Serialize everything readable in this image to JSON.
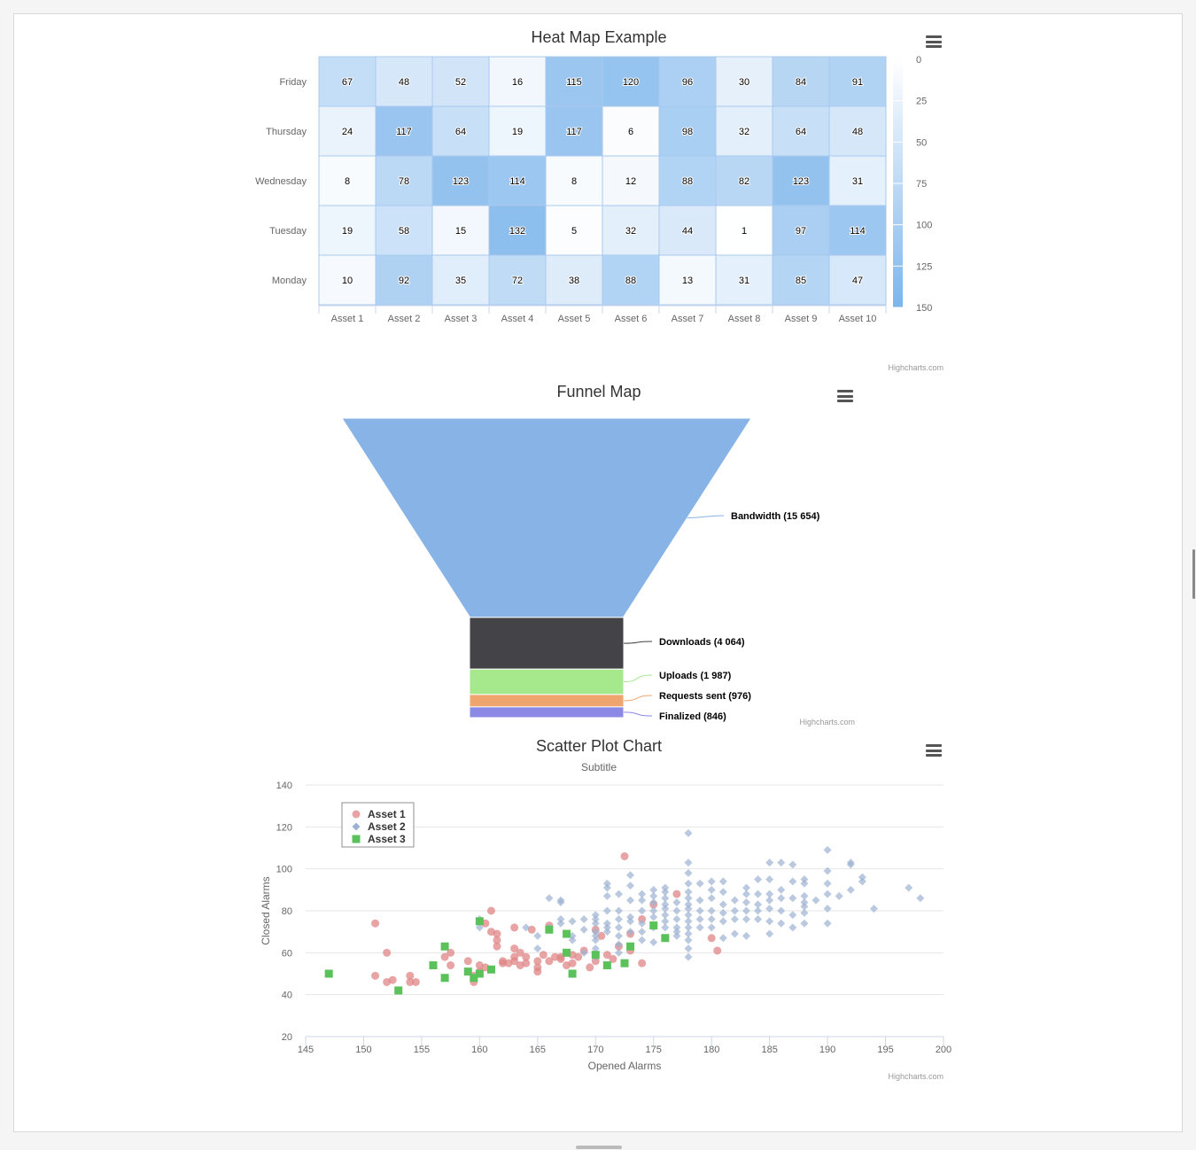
{
  "heatmap": {
    "title": "Heat Map Example",
    "credits": "Highcharts.com",
    "colors": {
      "min": "#ffffff",
      "max": "#7cb5ec",
      "border": "#a9c9ef"
    }
  },
  "funnel": {
    "title": "Funnel Map",
    "credits": "Highcharts.com"
  },
  "scatter": {
    "title": "Scatter Plot Chart",
    "subtitle": "Subtitle",
    "credits": "Highcharts.com"
  },
  "chart_data": [
    {
      "type": "heatmap",
      "title": "Heat Map Example",
      "x_categories": [
        "Asset 1",
        "Asset 2",
        "Asset 3",
        "Asset 4",
        "Asset 5",
        "Asset 6",
        "Asset 7",
        "Asset 8",
        "Asset 9",
        "Asset 10"
      ],
      "y_categories": [
        "Monday",
        "Tuesday",
        "Wednesday",
        "Thursday",
        "Friday"
      ],
      "values": [
        [
          10,
          92,
          35,
          72,
          38,
          88,
          13,
          31,
          85,
          47
        ],
        [
          19,
          58,
          15,
          132,
          5,
          32,
          44,
          1,
          97,
          114
        ],
        [
          8,
          78,
          123,
          114,
          8,
          12,
          88,
          82,
          123,
          31
        ],
        [
          24,
          117,
          64,
          19,
          117,
          6,
          98,
          32,
          64,
          48
        ],
        [
          67,
          48,
          52,
          16,
          115,
          120,
          96,
          30,
          84,
          91
        ]
      ],
      "color_axis": {
        "min": 0,
        "max": 150,
        "ticks": [
          0,
          25,
          50,
          75,
          100,
          125,
          150
        ]
      }
    },
    {
      "type": "funnel",
      "title": "Funnel Map",
      "points": [
        {
          "name": "Bandwidth",
          "value": 15654,
          "label": "Bandwidth (15 654)",
          "color": "#87b3e6"
        },
        {
          "name": "Downloads",
          "value": 4064,
          "label": "Downloads (4 064)",
          "color": "#434348"
        },
        {
          "name": "Uploads",
          "value": 1987,
          "label": "Uploads (1 987)",
          "color": "#a5e98c"
        },
        {
          "name": "Requests sent",
          "value": 976,
          "label": "Requests sent (976)",
          "color": "#f0a56e"
        },
        {
          "name": "Finalized",
          "value": 846,
          "label": "Finalized (846)",
          "color": "#8b88e6"
        }
      ]
    },
    {
      "type": "scatter",
      "title": "Scatter Plot Chart",
      "subtitle": "Subtitle",
      "xlabel": "Opened Alarms",
      "ylabel": "Closed Alarms",
      "xlim": [
        145,
        200
      ],
      "ylim": [
        20,
        140
      ],
      "x_ticks": [
        145,
        150,
        155,
        160,
        165,
        170,
        175,
        180,
        185,
        190,
        195,
        200
      ],
      "y_ticks": [
        20,
        40,
        60,
        80,
        100,
        120,
        140
      ],
      "legend": "top-left",
      "series": [
        {
          "name": "Asset 1",
          "marker": "circle",
          "color": "#e08585",
          "points": [
            [
              151,
              74
            ],
            [
              151,
              49
            ],
            [
              152,
              60
            ],
            [
              152,
              46
            ],
            [
              152.5,
              47
            ],
            [
              154,
              49
            ],
            [
              154,
              46
            ],
            [
              154.5,
              46
            ],
            [
              157,
              58
            ],
            [
              157.5,
              60
            ],
            [
              157.5,
              54
            ],
            [
              159,
              56
            ],
            [
              159.5,
              49
            ],
            [
              159.5,
              46
            ],
            [
              160,
              54
            ],
            [
              160,
              51
            ],
            [
              160.5,
              53
            ],
            [
              160.5,
              74
            ],
            [
              161,
              80
            ],
            [
              161,
              70
            ],
            [
              161.5,
              63
            ],
            [
              161.5,
              69
            ],
            [
              161.5,
              66
            ],
            [
              162,
              55
            ],
            [
              162.5,
              55
            ],
            [
              162,
              56
            ],
            [
              163,
              58
            ],
            [
              163,
              56
            ],
            [
              163,
              62
            ],
            [
              163,
              72
            ],
            [
              163.5,
              60
            ],
            [
              163.5,
              54
            ],
            [
              164,
              58
            ],
            [
              164,
              55
            ],
            [
              164.5,
              71
            ],
            [
              165,
              51
            ],
            [
              165,
              56
            ],
            [
              165,
              53
            ],
            [
              165.5,
              59
            ],
            [
              166,
              56
            ],
            [
              166,
              73
            ],
            [
              166.5,
              58
            ],
            [
              167,
              58
            ],
            [
              167,
              57
            ],
            [
              167.5,
              54
            ],
            [
              168,
              59
            ],
            [
              168,
              55
            ],
            [
              168.5,
              58
            ],
            [
              169,
              61
            ],
            [
              169.5,
              53
            ],
            [
              170,
              56
            ],
            [
              170,
              71
            ],
            [
              170.5,
              68
            ],
            [
              171,
              59
            ],
            [
              171.5,
              57
            ],
            [
              172,
              63
            ],
            [
              172.5,
              106
            ],
            [
              173,
              61
            ],
            [
              173,
              69
            ],
            [
              174,
              55
            ],
            [
              175,
              83
            ],
            [
              177,
              88
            ],
            [
              180,
              67
            ],
            [
              180.5,
              61
            ],
            [
              174,
              76
            ]
          ]
        },
        {
          "name": "Asset 2",
          "marker": "diamond",
          "color": "#9db2d2",
          "points": [
            [
              160,
              72
            ],
            [
              160,
              76
            ],
            [
              164,
              72
            ],
            [
              165,
              68
            ],
            [
              165,
              62
            ],
            [
              166,
              72
            ],
            [
              166,
              86
            ],
            [
              167,
              85
            ],
            [
              167,
              84
            ],
            [
              167,
              74
            ],
            [
              167,
              76
            ],
            [
              168,
              75
            ],
            [
              168,
              68
            ],
            [
              168,
              66
            ],
            [
              169,
              76
            ],
            [
              169,
              71
            ],
            [
              169,
              60
            ],
            [
              170,
              78
            ],
            [
              170,
              76
            ],
            [
              170,
              74
            ],
            [
              170,
              70
            ],
            [
              170,
              68
            ],
            [
              170,
              66
            ],
            [
              170,
              62
            ],
            [
              170,
              58
            ],
            [
              171,
              93
            ],
            [
              171,
              91
            ],
            [
              171,
              87
            ],
            [
              171,
              80
            ],
            [
              171,
              74
            ],
            [
              171,
              72
            ],
            [
              171,
              70
            ],
            [
              172,
              88
            ],
            [
              172,
              80
            ],
            [
              172,
              76
            ],
            [
              172,
              72
            ],
            [
              172,
              68
            ],
            [
              172,
              64
            ],
            [
              172,
              60
            ],
            [
              173,
              97
            ],
            [
              173,
              92
            ],
            [
              173,
              85
            ],
            [
              173,
              77
            ],
            [
              173,
              75
            ],
            [
              173,
              70
            ],
            [
              174,
              88
            ],
            [
              174,
              85
            ],
            [
              174,
              80
            ],
            [
              174,
              74
            ],
            [
              174,
              70
            ],
            [
              174,
              66
            ],
            [
              175,
              90
            ],
            [
              175,
              87
            ],
            [
              175,
              84
            ],
            [
              175,
              80
            ],
            [
              175,
              77
            ],
            [
              175,
              72
            ],
            [
              175,
              65
            ],
            [
              176,
              91
            ],
            [
              176,
              89
            ],
            [
              176,
              86
            ],
            [
              176,
              83
            ],
            [
              176,
              81
            ],
            [
              176,
              78
            ],
            [
              176,
              75
            ],
            [
              176,
              72
            ],
            [
              177,
              84
            ],
            [
              177,
              80
            ],
            [
              177,
              76
            ],
            [
              177,
              72
            ],
            [
              177,
              70
            ],
            [
              177,
              68
            ],
            [
              178,
              117
            ],
            [
              178,
              103
            ],
            [
              178,
              98
            ],
            [
              178,
              93
            ],
            [
              178,
              89
            ],
            [
              178,
              86
            ],
            [
              178,
              83
            ],
            [
              178,
              81
            ],
            [
              178,
              78
            ],
            [
              178,
              75
            ],
            [
              178,
              72
            ],
            [
              178,
              69
            ],
            [
              178,
              66
            ],
            [
              178,
              62
            ],
            [
              178,
              58
            ],
            [
              179,
              93
            ],
            [
              179,
              85
            ],
            [
              179,
              80
            ],
            [
              179,
              76
            ],
            [
              179,
              72
            ],
            [
              180,
              94
            ],
            [
              180,
              90
            ],
            [
              180,
              86
            ],
            [
              180,
              80
            ],
            [
              180,
              76
            ],
            [
              180,
              72
            ],
            [
              181,
              94
            ],
            [
              181,
              89
            ],
            [
              181,
              83
            ],
            [
              181,
              79
            ],
            [
              181,
              75
            ],
            [
              181,
              67
            ],
            [
              182,
              85
            ],
            [
              182,
              80
            ],
            [
              182,
              76
            ],
            [
              182,
              69
            ],
            [
              183,
              91
            ],
            [
              183,
              88
            ],
            [
              183,
              84
            ],
            [
              183,
              80
            ],
            [
              183,
              76
            ],
            [
              183,
              68
            ],
            [
              184,
              95
            ],
            [
              184,
              88
            ],
            [
              184,
              83
            ],
            [
              184,
              80
            ],
            [
              184,
              76
            ],
            [
              185,
              103
            ],
            [
              185,
              95
            ],
            [
              185,
              88
            ],
            [
              185,
              85
            ],
            [
              185,
              81
            ],
            [
              185,
              75
            ],
            [
              185,
              69
            ],
            [
              186,
              103
            ],
            [
              186,
              90
            ],
            [
              186,
              86
            ],
            [
              186,
              80
            ],
            [
              186,
              74
            ],
            [
              187,
              102
            ],
            [
              187,
              94
            ],
            [
              187,
              86
            ],
            [
              187,
              78
            ],
            [
              187,
              72
            ],
            [
              188,
              95
            ],
            [
              188,
              93
            ],
            [
              188,
              87
            ],
            [
              188,
              84
            ],
            [
              188,
              82
            ],
            [
              188,
              79
            ],
            [
              188,
              74
            ],
            [
              189,
              85
            ],
            [
              190,
              109
            ],
            [
              190,
              99
            ],
            [
              190,
              93
            ],
            [
              190,
              88
            ],
            [
              190,
              81
            ],
            [
              190,
              74
            ],
            [
              191,
              87
            ],
            [
              192,
              103
            ],
            [
              192,
              102
            ],
            [
              192,
              90
            ],
            [
              193,
              94
            ],
            [
              193,
              96
            ],
            [
              194,
              81
            ],
            [
              197,
              91
            ],
            [
              198,
              86
            ]
          ]
        },
        {
          "name": "Asset 3",
          "marker": "square",
          "color": "#5bc15b",
          "points": [
            [
              147,
              50
            ],
            [
              153,
              42
            ],
            [
              156,
              54
            ],
            [
              157,
              63
            ],
            [
              157,
              48
            ],
            [
              159,
              51
            ],
            [
              159.5,
              48
            ],
            [
              160,
              50
            ],
            [
              160,
              75
            ],
            [
              161,
              52
            ],
            [
              166,
              71
            ],
            [
              167.5,
              69
            ],
            [
              167.5,
              60
            ],
            [
              168,
              50
            ],
            [
              170,
              59
            ],
            [
              171,
              54
            ],
            [
              172.5,
              55
            ],
            [
              173,
              63
            ],
            [
              175,
              73
            ],
            [
              176,
              67
            ]
          ]
        }
      ]
    }
  ]
}
